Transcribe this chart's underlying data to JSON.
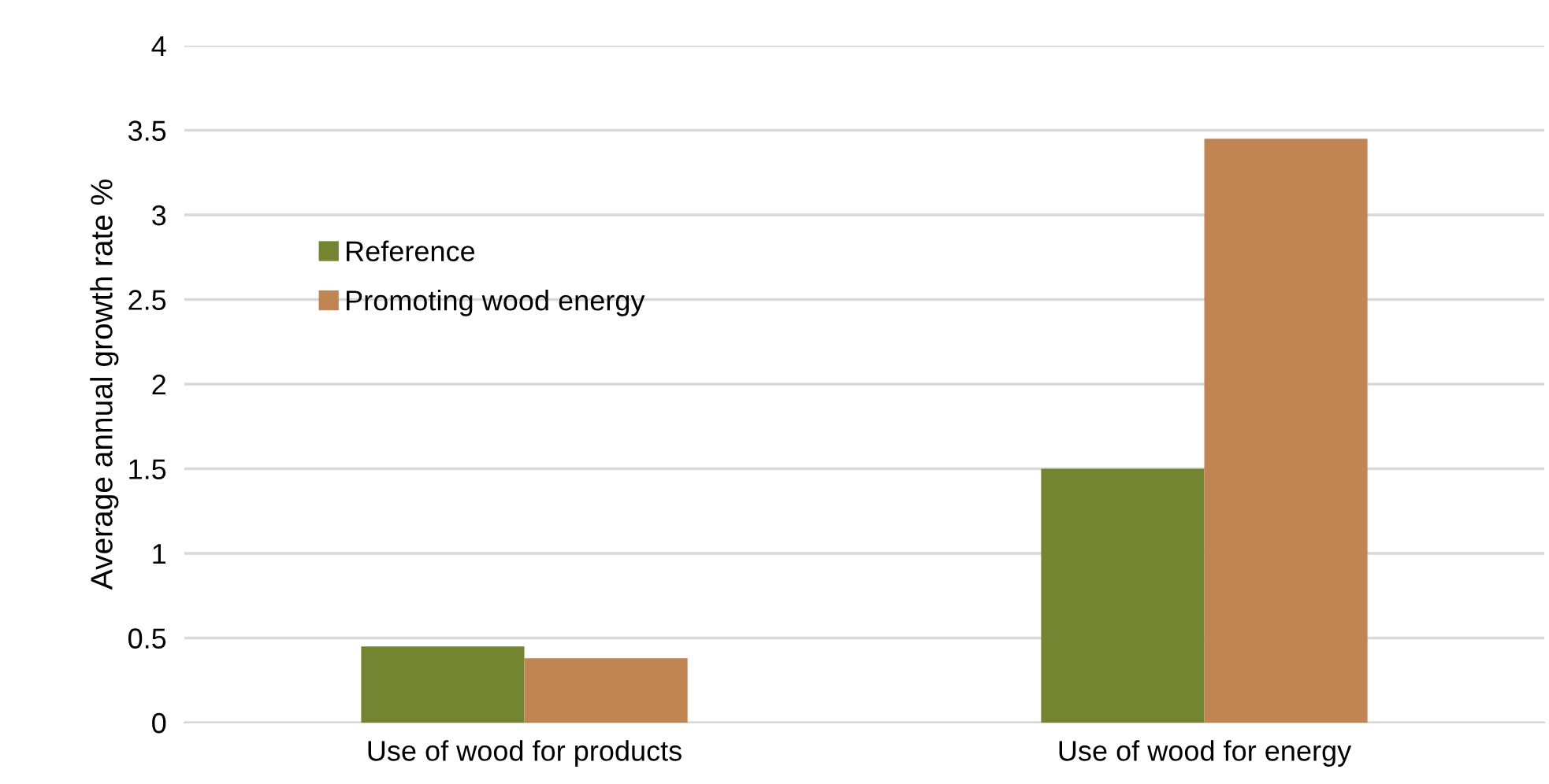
{
  "chart_data": {
    "type": "bar",
    "ylabel": "Average annual growth rate %",
    "categories": [
      "Use of wood for products",
      "Use of wood for energy"
    ],
    "series": [
      {
        "name": "Reference",
        "color": "#738531",
        "values": [
          0.45,
          1.5
        ]
      },
      {
        "name": "Promoting wood energy",
        "color": "#c08552",
        "values": [
          0.38,
          3.45
        ]
      }
    ],
    "ylim": [
      0,
      4
    ],
    "yticks": [
      0,
      0.5,
      1,
      1.5,
      2,
      2.5,
      3,
      3.5,
      4
    ],
    "grid": "y",
    "legend": "top left"
  }
}
